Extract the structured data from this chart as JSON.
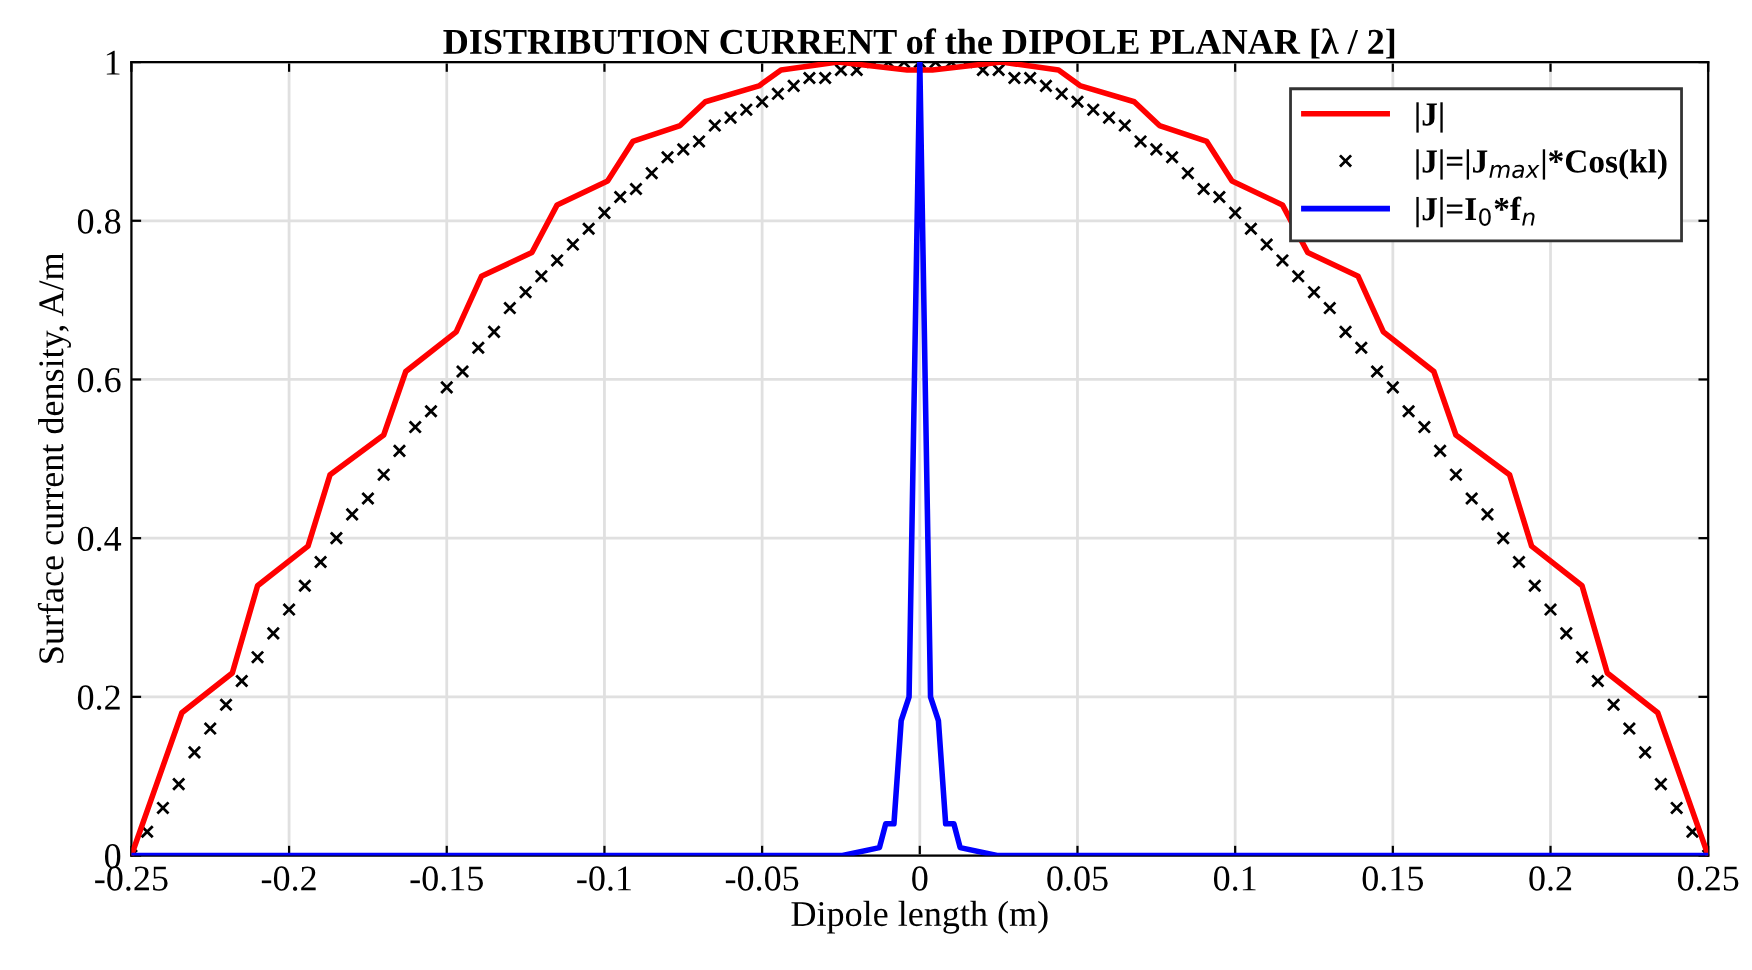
{
  "chart_data": {
    "type": "line",
    "title": "DISTRIBUTION CURRENT of the DIPOLE PLANAR [λ / 2]",
    "xlabel": "Dipole length (m)",
    "ylabel": "Surface current density, A/m",
    "xlim": [
      -0.25,
      0.25
    ],
    "xticks": [
      -0.25,
      -0.2,
      -0.15,
      -0.1,
      -0.05,
      0,
      0.05,
      0.1,
      0.15,
      0.2,
      0.25
    ],
    "ylim": [
      0,
      1
    ],
    "yticks": [
      0,
      0.2,
      0.4,
      0.6,
      0.8,
      1
    ],
    "grid": true,
    "legend": "top right",
    "series": [
      {
        "name": "|J|",
        "color": "#ff0000",
        "marker": "none",
        "x": [
          -0.25,
          -0.234,
          -0.218,
          -0.21,
          -0.194,
          -0.187,
          -0.17,
          -0.163,
          -0.147,
          -0.139,
          -0.123,
          -0.115,
          -0.099,
          -0.091,
          -0.076,
          -0.068,
          -0.051,
          -0.044,
          -0.026,
          -0.004,
          0,
          0.004,
          0.026,
          0.044,
          0.051,
          0.068,
          0.076,
          0.091,
          0.099,
          0.115,
          0.123,
          0.139,
          0.147,
          0.163,
          0.17,
          0.187,
          0.194,
          0.21,
          0.218,
          0.234,
          0.25
        ],
        "values": [
          0,
          0.18,
          0.23,
          0.34,
          0.39,
          0.48,
          0.53,
          0.61,
          0.66,
          0.73,
          0.76,
          0.82,
          0.85,
          0.9,
          0.92,
          0.95,
          0.97,
          0.99,
          1.0,
          0.99,
          0.99,
          0.99,
          1.0,
          0.99,
          0.97,
          0.95,
          0.92,
          0.9,
          0.85,
          0.82,
          0.76,
          0.73,
          0.66,
          0.61,
          0.53,
          0.48,
          0.39,
          0.34,
          0.23,
          0.18,
          0
        ]
      },
      {
        "name": "|J|=|J$_{max}$|*Cos(kl)",
        "color": "#000000",
        "type": "scatter",
        "marker": "cross",
        "x": [
          -0.25,
          -0.245,
          -0.24,
          -0.235,
          -0.23,
          -0.225,
          -0.22,
          -0.215,
          -0.21,
          -0.205,
          -0.2,
          -0.195,
          -0.19,
          -0.185,
          -0.18,
          -0.175,
          -0.17,
          -0.165,
          -0.16,
          -0.155,
          -0.15,
          -0.145,
          -0.14,
          -0.135,
          -0.13,
          -0.125,
          -0.12,
          -0.115,
          -0.11,
          -0.105,
          -0.1,
          -0.095,
          -0.09,
          -0.085,
          -0.08,
          -0.075,
          -0.07,
          -0.065,
          -0.06,
          -0.055,
          -0.05,
          -0.045,
          -0.04,
          -0.035,
          -0.03,
          -0.025,
          -0.02,
          -0.015,
          -0.01,
          -0.005,
          0,
          0.005,
          0.01,
          0.015,
          0.02,
          0.025,
          0.03,
          0.035,
          0.04,
          0.045,
          0.05,
          0.055,
          0.06,
          0.065,
          0.07,
          0.075,
          0.08,
          0.085,
          0.09,
          0.095,
          0.1,
          0.105,
          0.11,
          0.115,
          0.12,
          0.125,
          0.13,
          0.135,
          0.14,
          0.145,
          0.15,
          0.155,
          0.16,
          0.165,
          0.17,
          0.175,
          0.18,
          0.185,
          0.19,
          0.195,
          0.2,
          0.205,
          0.21,
          0.215,
          0.22,
          0.225,
          0.23,
          0.235,
          0.24,
          0.245,
          0.25
        ],
        "values": [
          0.0,
          0.03,
          0.06,
          0.09,
          0.13,
          0.16,
          0.19,
          0.22,
          0.25,
          0.28,
          0.31,
          0.34,
          0.37,
          0.4,
          0.43,
          0.45,
          0.48,
          0.51,
          0.54,
          0.56,
          0.59,
          0.61,
          0.64,
          0.66,
          0.69,
          0.71,
          0.73,
          0.75,
          0.77,
          0.79,
          0.81,
          0.83,
          0.84,
          0.86,
          0.88,
          0.89,
          0.9,
          0.92,
          0.93,
          0.94,
          0.95,
          0.96,
          0.97,
          0.98,
          0.98,
          0.99,
          0.99,
          1.0,
          1.0,
          1.0,
          1.0,
          1.0,
          1.0,
          1.0,
          0.99,
          0.99,
          0.98,
          0.98,
          0.97,
          0.96,
          0.95,
          0.94,
          0.93,
          0.92,
          0.9,
          0.89,
          0.88,
          0.86,
          0.84,
          0.83,
          0.81,
          0.79,
          0.77,
          0.75,
          0.73,
          0.71,
          0.69,
          0.66,
          0.64,
          0.61,
          0.59,
          0.56,
          0.54,
          0.51,
          0.48,
          0.45,
          0.43,
          0.4,
          0.37,
          0.34,
          0.31,
          0.28,
          0.25,
          0.22,
          0.19,
          0.16,
          0.13,
          0.09,
          0.06,
          0.03,
          0.0
        ]
      },
      {
        "name": "|J|=I$_{0}$*f$_{n}$",
        "color": "#0000ff",
        "marker": "none",
        "x": [
          -0.25,
          -0.0245,
          -0.0128,
          -0.0108,
          -0.0082,
          -0.0059,
          -0.0034,
          0,
          0.0034,
          0.0059,
          0.0082,
          0.0108,
          0.0128,
          0.0245,
          0.25
        ],
        "values": [
          0,
          0,
          0.01,
          0.04,
          0.04,
          0.17,
          0.2,
          1.0,
          0.2,
          0.17,
          0.04,
          0.04,
          0.01,
          0,
          0
        ]
      }
    ]
  }
}
